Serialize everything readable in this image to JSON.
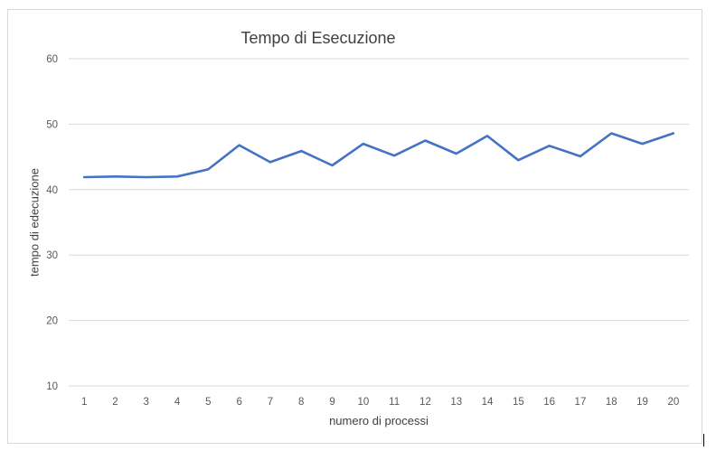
{
  "chart_data": {
    "type": "line",
    "title": "Tempo di Esecuzione",
    "xlabel": "numero di processi",
    "ylabel": "tempo di edecuzione",
    "x": [
      1,
      2,
      3,
      4,
      5,
      6,
      7,
      8,
      9,
      10,
      11,
      12,
      13,
      14,
      15,
      16,
      17,
      18,
      19,
      20
    ],
    "series": [
      {
        "values": [
          41.9,
          42.0,
          41.9,
          42.0,
          43.1,
          46.8,
          44.2,
          45.9,
          43.7,
          47.0,
          45.2,
          47.5,
          45.5,
          48.2,
          44.5,
          46.7,
          45.1,
          48.6,
          47.0,
          48.6
        ],
        "color": "#4472c4"
      }
    ],
    "ylim": [
      10,
      60
    ],
    "yticks": [
      10,
      20,
      30,
      40,
      50,
      60
    ],
    "grid": true,
    "legend": "none"
  }
}
